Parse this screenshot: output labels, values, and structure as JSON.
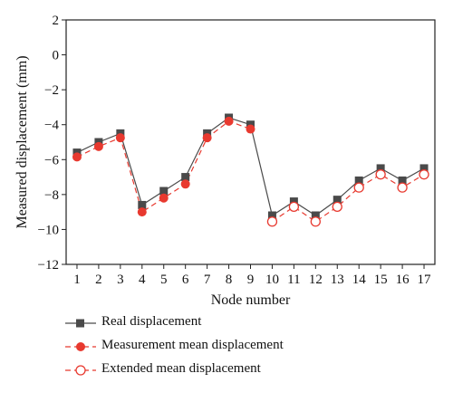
{
  "chart_data": {
    "type": "line",
    "xlabel": "Node number",
    "ylabel": "Measured displacement (mm)",
    "xlim": [
      0.5,
      17.5
    ],
    "ylim": [
      -12,
      2
    ],
    "x_ticks": [
      1,
      2,
      3,
      4,
      5,
      6,
      7,
      8,
      9,
      10,
      11,
      12,
      13,
      14,
      15,
      16,
      17
    ],
    "y_ticks": [
      2,
      0,
      -2,
      -4,
      -6,
      -8,
      -10,
      -12
    ],
    "grid": false,
    "legend_position": "bottom",
    "series": [
      {
        "name": "Real displacement",
        "color": "#4a4a4a",
        "marker": "square-filled",
        "line_style": "solid",
        "x": [
          1,
          2,
          3,
          4,
          5,
          6,
          7,
          8,
          9,
          10,
          11,
          12,
          13,
          14,
          15,
          16,
          17
        ],
        "y": [
          -5.6,
          -5.0,
          -4.5,
          -8.6,
          -7.8,
          -7.0,
          -4.5,
          -3.6,
          -4.0,
          -9.2,
          -8.4,
          -9.2,
          -8.3,
          -7.2,
          -6.5,
          -7.2,
          -6.5
        ]
      },
      {
        "name": "Measurement mean displacement",
        "color": "#e8392f",
        "marker": "circle-filled",
        "line_style": "dashed",
        "x": [
          1,
          2,
          3,
          4,
          5,
          6,
          7,
          8,
          9
        ],
        "y": [
          -5.85,
          -5.25,
          -4.75,
          -9.0,
          -8.2,
          -7.4,
          -4.75,
          -3.8,
          -4.25
        ]
      },
      {
        "name": "Extended mean displacement",
        "color": "#e8392f",
        "marker": "circle-open",
        "line_style": "dashed",
        "x": [
          10,
          11,
          12,
          13,
          14,
          15,
          16,
          17
        ],
        "y": [
          -9.55,
          -8.7,
          -9.55,
          -8.7,
          -7.6,
          -6.85,
          -7.6,
          -6.85
        ]
      }
    ]
  }
}
